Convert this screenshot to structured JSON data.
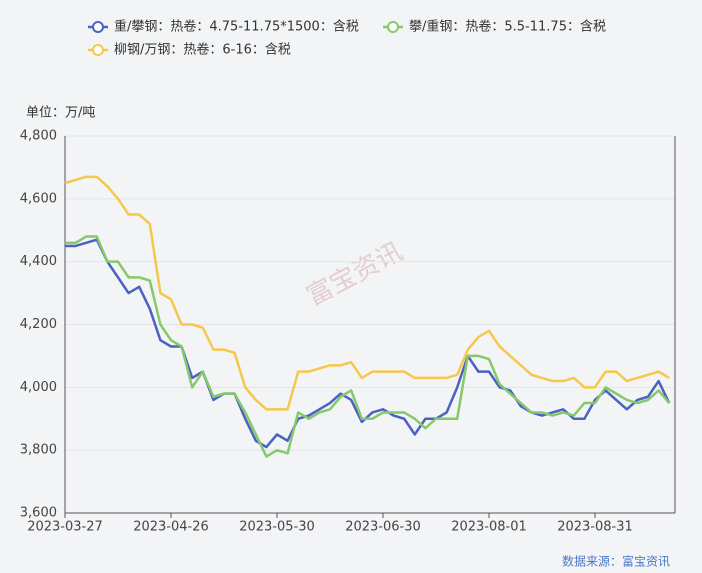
{
  "chart_data": {
    "type": "line",
    "y_label": "单位：万/吨",
    "watermark": "富宝资讯",
    "source": "数据来源：富宝资讯",
    "categories": [
      "2023-03-27",
      null,
      null,
      null,
      null,
      null,
      null,
      null,
      null,
      null,
      "2023-04-26",
      null,
      null,
      null,
      null,
      null,
      null,
      null,
      null,
      null,
      "2023-05-30",
      null,
      null,
      null,
      null,
      null,
      null,
      null,
      null,
      null,
      "2023-06-30",
      null,
      null,
      null,
      null,
      null,
      null,
      null,
      null,
      null,
      "2023-08-01",
      null,
      null,
      null,
      null,
      null,
      null,
      null,
      null,
      null,
      "2023-08-31",
      null,
      null,
      null,
      null,
      null,
      null,
      null
    ],
    "series": [
      {
        "name": "重/攀钢：热卷：4.75-11.75*1500：含税",
        "color": "#4a62c0",
        "values": [
          4450,
          4450,
          4460,
          4470,
          4400,
          4350,
          4300,
          4320,
          4250,
          4150,
          4130,
          4130,
          4030,
          4050,
          3960,
          3980,
          3980,
          3900,
          3830,
          3810,
          3850,
          3830,
          3900,
          3910,
          3930,
          3950,
          3980,
          3960,
          3890,
          3920,
          3930,
          3910,
          3900,
          3850,
          3900,
          3900,
          3920,
          4000,
          4100,
          4050,
          4050,
          4000,
          3990,
          3940,
          3920,
          3910,
          3920,
          3930,
          3900,
          3900,
          3960,
          3990,
          3960,
          3930,
          3960,
          3970,
          4020,
          3950
        ]
      },
      {
        "name": "攀/重钢：热卷：5.5-11.75：含税",
        "color": "#86c86a",
        "values": [
          4460,
          4460,
          4480,
          4480,
          4400,
          4400,
          4350,
          4350,
          4340,
          4200,
          4150,
          4130,
          4000,
          4050,
          3970,
          3980,
          3980,
          3920,
          3850,
          3780,
          3800,
          3790,
          3920,
          3900,
          3920,
          3930,
          3970,
          3990,
          3900,
          3900,
          3920,
          3920,
          3920,
          3900,
          3870,
          3900,
          3900,
          3900,
          4100,
          4100,
          4090,
          4010,
          3980,
          3950,
          3920,
          3920,
          3910,
          3920,
          3910,
          3950,
          3950,
          4000,
          3980,
          3960,
          3950,
          3960,
          3990,
          3950
        ]
      },
      {
        "name": "柳钢/万钢：热卷：6-16：含税",
        "color": "#f7c74c",
        "values": [
          4650,
          4660,
          4670,
          4670,
          4640,
          4600,
          4550,
          4550,
          4520,
          4300,
          4280,
          4200,
          4200,
          4190,
          4120,
          4120,
          4110,
          4000,
          3960,
          3930,
          3930,
          3930,
          4050,
          4050,
          4060,
          4070,
          4070,
          4080,
          4030,
          4050,
          4050,
          4050,
          4050,
          4030,
          4030,
          4030,
          4030,
          4040,
          4120,
          4160,
          4180,
          4130,
          4100,
          4070,
          4040,
          4030,
          4020,
          4020,
          4030,
          4000,
          4000,
          4050,
          4050,
          4020,
          4030,
          4040,
          4050,
          4030
        ]
      }
    ],
    "ylim": [
      3600,
      4800
    ],
    "yticks": [
      {
        "value": 3600,
        "label": "3,600"
      },
      {
        "value": 3800,
        "label": "3,800"
      },
      {
        "value": 4000,
        "label": "4,000"
      },
      {
        "value": 4200,
        "label": "4,200"
      },
      {
        "value": 4400,
        "label": "4,400"
      },
      {
        "value": 4600,
        "label": "4,600"
      },
      {
        "value": 4800,
        "label": "4,800"
      }
    ],
    "grid": true
  }
}
